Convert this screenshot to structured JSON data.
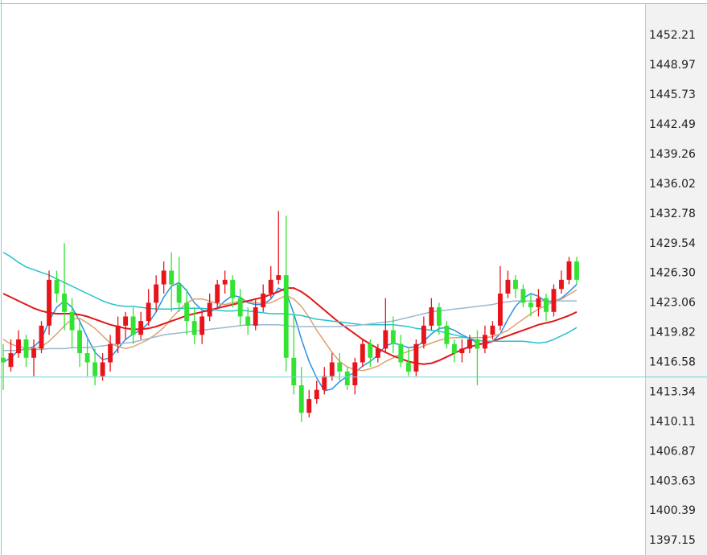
{
  "chart_data": {
    "type": "candlestick",
    "title": "",
    "xlabel": "",
    "ylabel": "",
    "ylim": [
      1395.5,
      1456.0
    ],
    "y_ticks": [
      "1452.21",
      "1448.97",
      "1445.73",
      "1442.49",
      "1439.26",
      "1436.02",
      "1432.78",
      "1429.54",
      "1426.30",
      "1423.06",
      "1419.82",
      "1416.58",
      "1413.34",
      "1410.11",
      "1406.87",
      "1403.63",
      "1400.39",
      "1397.15"
    ],
    "reference_line": 1414.9,
    "colors": {
      "up": "#e8141b",
      "down": "#33e233",
      "ma_fast": "#2a8fe6",
      "ma_mid": "#e0a070",
      "ma_red": "#e01818",
      "ma_cyan": "#22c4cc",
      "ma_grey": "#9ab8d0",
      "reference": "#6fd3dd",
      "axis_panel": "#f2f2f2"
    },
    "candles": [
      [
        1417.0,
        1416.5,
        1418.5,
        1413.5
      ],
      [
        1416.0,
        1417.5,
        1419.0,
        1415.5
      ],
      [
        1417.5,
        1419.0,
        1420.0,
        1417.0
      ],
      [
        1419.0,
        1417.0,
        1419.5,
        1416.0
      ],
      [
        1417.0,
        1418.0,
        1419.0,
        1415.0
      ],
      [
        1418.0,
        1420.5,
        1421.0,
        1417.5
      ],
      [
        1420.5,
        1425.5,
        1426.5,
        1419.5
      ],
      [
        1425.5,
        1424.0,
        1426.5,
        1423.0
      ],
      [
        1424.0,
        1422.0,
        1429.5,
        1420.0
      ],
      [
        1422.0,
        1420.0,
        1423.5,
        1418.0
      ],
      [
        1420.0,
        1417.5,
        1421.0,
        1416.0
      ],
      [
        1417.5,
        1416.5,
        1419.0,
        1415.0
      ],
      [
        1416.5,
        1415.0,
        1418.0,
        1414.0
      ],
      [
        1415.0,
        1416.5,
        1417.5,
        1414.5
      ],
      [
        1416.5,
        1418.5,
        1419.5,
        1415.5
      ],
      [
        1418.5,
        1420.5,
        1421.5,
        1417.5
      ],
      [
        1420.5,
        1421.5,
        1422.0,
        1419.0
      ],
      [
        1421.5,
        1419.5,
        1422.5,
        1418.5
      ],
      [
        1419.5,
        1421.0,
        1422.0,
        1419.0
      ],
      [
        1421.0,
        1423.0,
        1424.5,
        1420.5
      ],
      [
        1423.0,
        1425.0,
        1426.0,
        1422.0
      ],
      [
        1425.0,
        1426.5,
        1427.5,
        1424.0
      ],
      [
        1426.5,
        1425.0,
        1428.5,
        1422.0
      ],
      [
        1425.0,
        1423.0,
        1428.0,
        1422.0
      ],
      [
        1423.0,
        1421.0,
        1424.5,
        1419.5
      ],
      [
        1421.0,
        1419.5,
        1422.5,
        1418.5
      ],
      [
        1419.5,
        1421.5,
        1422.0,
        1418.5
      ],
      [
        1421.5,
        1423.0,
        1424.0,
        1421.0
      ],
      [
        1423.0,
        1425.0,
        1425.5,
        1422.5
      ],
      [
        1425.0,
        1425.5,
        1426.5,
        1424.0
      ],
      [
        1425.5,
        1423.5,
        1426.0,
        1422.5
      ],
      [
        1423.5,
        1421.5,
        1424.5,
        1420.5
      ],
      [
        1421.5,
        1420.5,
        1422.5,
        1419.5
      ],
      [
        1420.5,
        1422.5,
        1423.5,
        1420.0
      ],
      [
        1422.5,
        1424.0,
        1425.0,
        1422.0
      ],
      [
        1424.0,
        1425.5,
        1427.0,
        1423.5
      ],
      [
        1425.5,
        1426.0,
        1433.0,
        1425.0
      ],
      [
        1426.0,
        1417.0,
        1432.5,
        1415.5
      ],
      [
        1417.0,
        1414.0,
        1422.0,
        1413.0
      ],
      [
        1414.0,
        1411.0,
        1416.0,
        1410.0
      ],
      [
        1411.0,
        1412.5,
        1413.5,
        1410.5
      ],
      [
        1412.5,
        1413.5,
        1414.5,
        1412.0
      ],
      [
        1413.5,
        1415.0,
        1416.0,
        1413.0
      ],
      [
        1415.0,
        1416.5,
        1417.5,
        1414.5
      ],
      [
        1416.5,
        1415.5,
        1417.5,
        1414.5
      ],
      [
        1415.5,
        1414.0,
        1416.0,
        1413.5
      ],
      [
        1414.0,
        1416.5,
        1417.0,
        1413.0
      ],
      [
        1416.5,
        1418.5,
        1419.0,
        1416.0
      ],
      [
        1418.5,
        1417.0,
        1419.0,
        1416.0
      ],
      [
        1417.0,
        1418.0,
        1418.5,
        1416.5
      ],
      [
        1418.0,
        1420.0,
        1423.5,
        1417.5
      ],
      [
        1420.0,
        1418.5,
        1421.5,
        1417.5
      ],
      [
        1418.5,
        1416.5,
        1419.5,
        1416.0
      ],
      [
        1416.5,
        1415.5,
        1418.0,
        1415.0
      ],
      [
        1415.5,
        1418.5,
        1419.0,
        1415.0
      ],
      [
        1418.5,
        1420.5,
        1421.5,
        1418.0
      ],
      [
        1420.5,
        1422.5,
        1423.5,
        1420.0
      ],
      [
        1422.5,
        1420.5,
        1423.0,
        1419.5
      ],
      [
        1420.5,
        1418.5,
        1421.0,
        1418.0
      ],
      [
        1418.5,
        1417.5,
        1419.0,
        1416.5
      ],
      [
        1417.5,
        1418.0,
        1419.0,
        1416.5
      ],
      [
        1418.0,
        1419.0,
        1419.5,
        1417.5
      ],
      [
        1419.0,
        1418.0,
        1420.0,
        1414.0
      ],
      [
        1418.0,
        1419.5,
        1420.5,
        1417.5
      ],
      [
        1419.5,
        1420.5,
        1421.0,
        1419.0
      ],
      [
        1420.5,
        1424.0,
        1427.0,
        1420.0
      ],
      [
        1424.0,
        1425.5,
        1426.5,
        1423.5
      ],
      [
        1425.5,
        1424.5,
        1426.0,
        1423.5
      ],
      [
        1424.5,
        1423.0,
        1425.0,
        1422.5
      ],
      [
        1423.0,
        1422.5,
        1424.0,
        1421.5
      ],
      [
        1422.5,
        1423.5,
        1424.5,
        1421.5
      ],
      [
        1423.5,
        1422.0,
        1424.0,
        1421.0
      ],
      [
        1422.0,
        1424.5,
        1425.0,
        1421.5
      ],
      [
        1424.5,
        1425.5,
        1426.5,
        1424.0
      ],
      [
        1425.5,
        1427.5,
        1428.0,
        1425.0
      ],
      [
        1427.5,
        1425.5,
        1428.0,
        1425.0
      ]
    ],
    "series": [
      {
        "key": "ma_fast",
        "values": [
          1416.5,
          1417.0,
          1417.8,
          1418.0,
          1418.2,
          1419.0,
          1421.0,
          1422.5,
          1423.2,
          1422.5,
          1421.0,
          1419.2,
          1417.6,
          1416.8,
          1417.0,
          1418.0,
          1419.0,
          1419.6,
          1420.0,
          1420.8,
          1422.0,
          1423.6,
          1424.8,
          1425.2,
          1424.3,
          1423.0,
          1422.2,
          1422.0,
          1422.4,
          1423.2,
          1423.8,
          1423.6,
          1423.0,
          1422.8,
          1422.8,
          1423.4,
          1424.6,
          1424.2,
          1421.8,
          1419.0,
          1416.6,
          1414.8,
          1413.4,
          1413.6,
          1414.4,
          1415.0,
          1415.4,
          1416.1,
          1416.6,
          1417.3,
          1418.3,
          1418.6,
          1418.4,
          1418.1,
          1418.2,
          1418.8,
          1419.6,
          1420.2,
          1420.3,
          1420.0,
          1419.5,
          1419.1,
          1418.6,
          1418.5,
          1418.8,
          1419.6,
          1421.2,
          1422.6,
          1423.5,
          1424.0,
          1423.7,
          1423.1,
          1423.1,
          1423.5,
          1424.2,
          1425.0
        ]
      },
      {
        "key": "ma_mid",
        "values": [
          1419.0,
          1418.5,
          1418.2,
          1418.1,
          1418.0,
          1418.2,
          1418.8,
          1419.6,
          1420.5,
          1421.2,
          1421.3,
          1420.8,
          1420.2,
          1419.4,
          1418.6,
          1418.2,
          1418.0,
          1418.2,
          1418.6,
          1419.0,
          1419.6,
          1420.3,
          1421.3,
          1422.2,
          1423.0,
          1423.4,
          1423.4,
          1423.2,
          1422.9,
          1422.8,
          1423.0,
          1423.2,
          1423.2,
          1423.0,
          1422.9,
          1423.0,
          1423.4,
          1423.8,
          1423.4,
          1422.6,
          1421.4,
          1420.0,
          1418.8,
          1417.6,
          1416.6,
          1416.0,
          1415.7,
          1415.6,
          1415.8,
          1416.1,
          1416.6,
          1417.0,
          1417.4,
          1417.7,
          1418.0,
          1418.3,
          1418.6,
          1418.9,
          1419.1,
          1419.2,
          1419.2,
          1419.2,
          1419.2,
          1419.2,
          1419.3,
          1419.6,
          1420.0,
          1420.6,
          1421.2,
          1421.8,
          1422.3,
          1422.7,
          1423.1,
          1423.4,
          1423.9,
          1424.4
        ]
      },
      {
        "key": "ma_red",
        "values": [
          1424.0,
          1423.6,
          1423.2,
          1422.8,
          1422.4,
          1422.1,
          1421.9,
          1421.8,
          1421.8,
          1421.8,
          1421.7,
          1421.5,
          1421.2,
          1420.9,
          1420.6,
          1420.4,
          1420.2,
          1420.1,
          1420.1,
          1420.2,
          1420.4,
          1420.7,
          1421.0,
          1421.3,
          1421.6,
          1421.8,
          1422.0,
          1422.2,
          1422.4,
          1422.6,
          1422.8,
          1423.0,
          1423.2,
          1423.4,
          1423.6,
          1423.9,
          1424.2,
          1424.6,
          1424.6,
          1424.2,
          1423.6,
          1422.9,
          1422.2,
          1421.5,
          1420.8,
          1420.2,
          1419.6,
          1419.0,
          1418.5,
          1418.0,
          1417.6,
          1417.2,
          1416.9,
          1416.6,
          1416.4,
          1416.3,
          1416.4,
          1416.7,
          1417.1,
          1417.5,
          1417.9,
          1418.2,
          1418.4,
          1418.6,
          1418.8,
          1419.1,
          1419.4,
          1419.7,
          1420.0,
          1420.3,
          1420.6,
          1420.8,
          1421.0,
          1421.3,
          1421.6,
          1422.0
        ]
      },
      {
        "key": "ma_cyan",
        "values": [
          1428.5,
          1428.0,
          1427.4,
          1426.9,
          1426.6,
          1426.3,
          1426.0,
          1425.6,
          1425.2,
          1424.8,
          1424.4,
          1424.0,
          1423.6,
          1423.2,
          1422.9,
          1422.7,
          1422.6,
          1422.6,
          1422.5,
          1422.4,
          1422.3,
          1422.3,
          1422.3,
          1422.4,
          1422.4,
          1422.4,
          1422.4,
          1422.3,
          1422.2,
          1422.1,
          1422.1,
          1422.2,
          1422.1,
          1422.0,
          1421.9,
          1421.8,
          1421.8,
          1421.8,
          1421.7,
          1421.6,
          1421.4,
          1421.2,
          1421.1,
          1421.0,
          1420.9,
          1420.8,
          1420.7,
          1420.6,
          1420.6,
          1420.6,
          1420.6,
          1420.6,
          1420.5,
          1420.4,
          1420.2,
          1420.1,
          1420.0,
          1419.9,
          1419.7,
          1419.5,
          1419.3,
          1419.1,
          1418.9,
          1418.8,
          1418.8,
          1418.8,
          1418.8,
          1418.8,
          1418.8,
          1418.7,
          1418.6,
          1418.7,
          1419.0,
          1419.4,
          1419.8,
          1420.3
        ]
      },
      {
        "key": "ma_grey",
        "values": [
          1417.8,
          1417.8,
          1417.8,
          1417.9,
          1417.9,
          1417.9,
          1418.0,
          1418.0,
          1418.0,
          1418.1,
          1418.1,
          1418.1,
          1418.2,
          1418.3,
          1418.4,
          1418.5,
          1418.6,
          1418.7,
          1418.9,
          1419.1,
          1419.3,
          1419.5,
          1419.6,
          1419.7,
          1419.8,
          1419.9,
          1420.0,
          1420.1,
          1420.2,
          1420.3,
          1420.4,
          1420.5,
          1420.6,
          1420.6,
          1420.6,
          1420.6,
          1420.6,
          1420.5,
          1420.4,
          1420.4,
          1420.4,
          1420.4,
          1420.4,
          1420.4,
          1420.4,
          1420.5,
          1420.5,
          1420.6,
          1420.7,
          1420.8,
          1420.9,
          1421.0,
          1421.2,
          1421.4,
          1421.6,
          1421.8,
          1422.0,
          1422.1,
          1422.2,
          1422.3,
          1422.4,
          1422.5,
          1422.6,
          1422.7,
          1422.8,
          1423.0,
          1423.1,
          1423.2,
          1423.2,
          1423.2,
          1423.2,
          1423.2,
          1423.2,
          1423.2,
          1423.2,
          1423.2
        ]
      }
    ]
  }
}
